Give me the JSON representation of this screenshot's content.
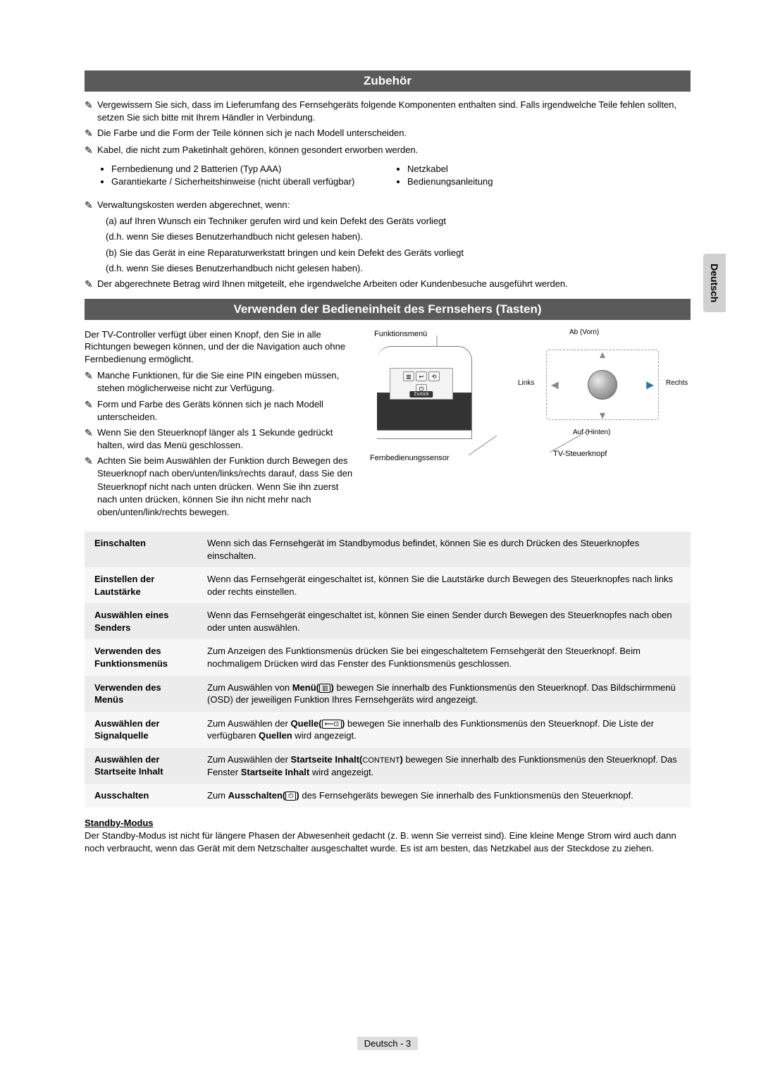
{
  "side_tab": "Deutsch",
  "section1": {
    "title": "Zubehör",
    "notes": [
      "Vergewissern Sie sich, dass im Lieferumfang des Fernsehgeräts folgende Komponenten enthalten sind. Falls irgendwelche Teile fehlen sollten, setzen Sie sich bitte mit Ihrem Händler in Verbindung.",
      "Die Farbe und die Form der Teile können sich je nach Modell unterscheiden.",
      "Kabel, die nicht zum Paketinhalt gehören, können gesondert erworben werden."
    ],
    "bullets_left": [
      "Fernbedienung und 2 Batterien (Typ AAA)",
      "Garantiekarte / Sicherheitshinweise (nicht überall verfügbar)"
    ],
    "bullets_right": [
      "Netzkabel",
      "Bedienungsanleitung"
    ],
    "notes2_intro": "Verwaltungskosten werden abgerechnet, wenn:",
    "notes2_sub": [
      "(a) auf Ihren Wunsch ein Techniker gerufen wird und kein Defekt des Geräts vorliegt",
      "(d.h. wenn Sie dieses Benutzerhandbuch nicht gelesen haben).",
      "(b) Sie das Gerät in eine Reparaturwerkstatt bringen und kein Defekt des Geräts vorliegt",
      "(d.h. wenn Sie dieses Benutzerhandbuch nicht gelesen haben)."
    ],
    "notes2_after": "Der abgerechnete Betrag wird Ihnen mitgeteilt, ehe irgendwelche Arbeiten oder Kundenbesuche ausgeführt werden."
  },
  "section2": {
    "title": "Verwenden der Bedieneinheit des Fernsehers (Tasten)",
    "intro": "Der TV-Controller verfügt über einen Knopf, den Sie in alle Richtungen bewegen können, und der die Navigation auch ohne Fernbedienung ermöglicht.",
    "bullets": [
      "Manche Funktionen, für die Sie eine PIN eingeben müssen, stehen möglicherweise nicht zur Verfügung.",
      "Form und Farbe des Geräts können sich je nach Modell unterscheiden.",
      "Wenn Sie den Steuerknopf länger als 1 Sekunde gedrückt halten, wird das Menü geschlossen.",
      "Achten Sie beim Auswählen der Funktion durch Bewegen des Steuerknopf nach oben/unten/links/rechts darauf, dass Sie den Steuerknopf nicht nach unten drücken. Wenn Sie ihn zuerst nach unten drücken, können Sie ihn nicht mehr nach oben/unten/link/rechts bewegen."
    ],
    "diagram": {
      "funktionsmenu": "Funktionsmenü",
      "ab": "Ab (Vorn)",
      "links": "Links",
      "rechts": "Rechts",
      "auf": "Auf (Hinten)",
      "sensor": "Fernbedienungssensor",
      "knopf": "TV-Steuerknopf",
      "zuruck": "Zurück"
    },
    "table": [
      {
        "label": "Einschalten",
        "desc": "Wenn sich das Fernsehgerät im Standbymodus befindet, können Sie es durch Drücken des Steuerknopfes einschalten."
      },
      {
        "label": "Einstellen der Lautstärke",
        "desc": "Wenn das Fernsehgerät eingeschaltet ist, können Sie die Lautstärke durch Bewegen des Steuerknopfes nach links oder rechts einstellen."
      },
      {
        "label": "Auswählen eines Senders",
        "desc": "Wenn das Fernsehgerät eingeschaltet ist, können Sie einen Sender durch Bewegen des Steuerknopfes nach oben oder unten auswählen."
      },
      {
        "label": "Verwenden des Funktionsmenüs",
        "desc": "Zum Anzeigen des Funktionsmenüs drücken Sie bei eingeschaltetem Fernsehgerät den Steuerknopf. Beim nochmaligem Drücken wird das Fenster des Funktionsmenüs geschlossen."
      },
      {
        "label": "Verwenden des Menüs",
        "desc_parts": [
          "Zum Auswählen von ",
          "Menü(",
          ")",
          " bewegen Sie innerhalb des Funktionsmenüs den Steuerknopf. Das Bildschirmmenü (OSD) der jeweiligen Funktion Ihres Fernsehgeräts wird angezeigt."
        ],
        "icon": "▥"
      },
      {
        "label": "Auswählen der Signalquelle",
        "desc_parts": [
          "Zum Auswählen der ",
          "Quelle(",
          ")",
          " bewegen Sie innerhalb des Funktionsmenüs den Steuerknopf. Die Liste der verfügbaren ",
          "Quellen",
          " wird angezeigt."
        ],
        "icon": "⟵⊡"
      },
      {
        "label": "Auswählen der Startseite Inhalt",
        "desc_parts": [
          "Zum Auswählen der ",
          "Startseite Inhalt(",
          ")",
          " bewegen Sie innerhalb des Funktionsmenüs den Steuerknopf. Das Fenster ",
          "Startseite Inhalt",
          " wird angezeigt."
        ],
        "icon_text": "CONTENT"
      },
      {
        "label": "Ausschalten",
        "desc_parts": [
          "Zum ",
          "Ausschalten(",
          ")",
          " des Fernsehgeräts bewegen Sie innerhalb des Funktionsmenüs den Steuerknopf."
        ],
        "icon": "⏻"
      }
    ]
  },
  "standby": {
    "heading": "Standby-Modus",
    "text": "Der Standby-Modus ist nicht für längere Phasen der Abwesenheit gedacht (z. B. wenn Sie verreist sind). Eine kleine Menge Strom wird auch dann noch verbraucht, wenn das Gerät mit dem Netzschalter ausgeschaltet wurde. Es ist am besten, das Netzkabel aus der Steckdose zu ziehen."
  },
  "footer": {
    "lang": "Deutsch",
    "page": "3"
  }
}
